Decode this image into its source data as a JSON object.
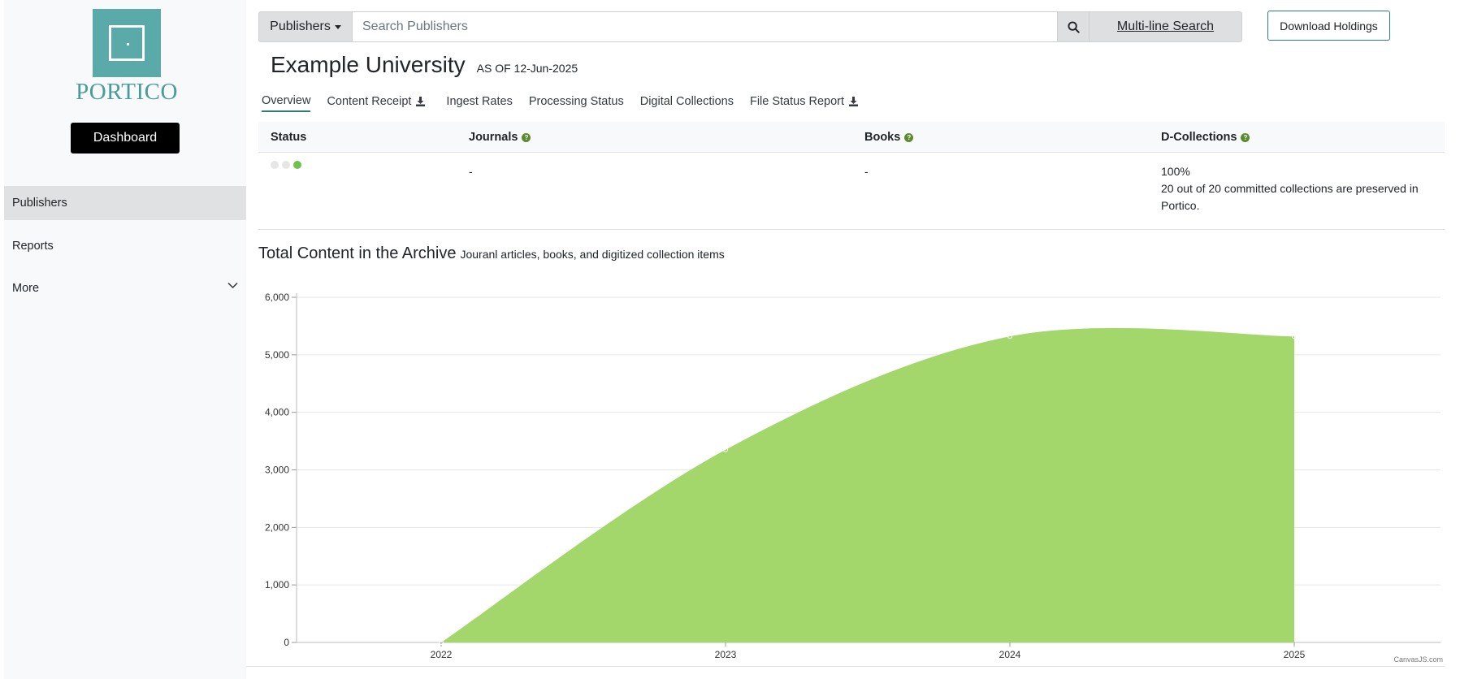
{
  "sidebar": {
    "logo_text": "PORTICO",
    "dashboard_label": "Dashboard",
    "items": [
      {
        "label": "Publishers",
        "active": true
      },
      {
        "label": "Reports",
        "active": false
      },
      {
        "label": "More",
        "active": false
      }
    ]
  },
  "search": {
    "dropdown_label": "Publishers",
    "placeholder": "Search Publishers",
    "value": "",
    "multiline_label": "Multi-line Search"
  },
  "download_holdings_label": "Download Holdings",
  "header": {
    "title": "Example University",
    "as_of": "AS OF 12-Jun-2025"
  },
  "tabs": [
    {
      "label": "Overview",
      "active": true,
      "download": false
    },
    {
      "label": "Content Receipt",
      "active": false,
      "download": true
    },
    {
      "label": "Ingest Rates",
      "active": false,
      "download": false
    },
    {
      "label": "Processing Status",
      "active": false,
      "download": false
    },
    {
      "label": "Digital Collections",
      "active": false,
      "download": false
    },
    {
      "label": "File Status Report",
      "active": false,
      "download": true
    }
  ],
  "status_table": {
    "headers": {
      "status": "Status",
      "journals": "Journals",
      "books": "Books",
      "dcollections": "D-Collections"
    },
    "row": {
      "status_dots": [
        "#e6e6e6",
        "#e6e6e6",
        "#6cc24a"
      ],
      "journals": "-",
      "books": "-",
      "dcollections_pct": "100%",
      "dcollections_note": "20 out of 20 committed collections are preserved in Portico."
    }
  },
  "chart_section": {
    "title": "Total Content in the Archive",
    "subtitle": "Jouranl articles, books, and digitized collection items",
    "credit": "CanvasJS.com"
  },
  "colors": {
    "area_fill": "#a3d76b",
    "accent": "#2e7d7d",
    "help_icon": "#5c8a2e"
  },
  "chart_data": {
    "type": "area",
    "categories": [
      "2022",
      "2023",
      "2024",
      "2025"
    ],
    "values": [
      0,
      3350,
      5320,
      5320
    ],
    "ylim": [
      0,
      6000
    ],
    "yticks": [
      0,
      1000,
      2000,
      3000,
      4000,
      5000,
      6000
    ],
    "ytick_labels": [
      "0",
      "1,000",
      "2,000",
      "3,000",
      "4,000",
      "5,000",
      "6,000"
    ],
    "title": "Total Content in the Archive",
    "xlabel": "",
    "ylabel": "",
    "grid": true
  }
}
